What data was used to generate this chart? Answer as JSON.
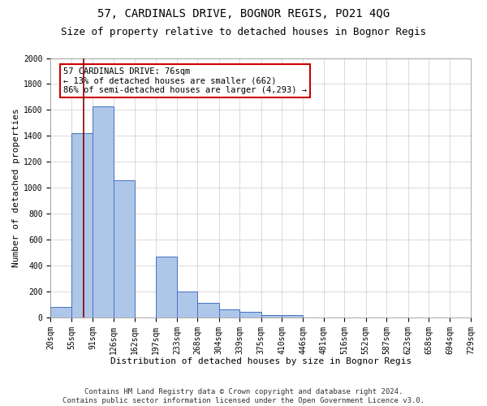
{
  "title1": "57, CARDINALS DRIVE, BOGNOR REGIS, PO21 4QG",
  "title2": "Size of property relative to detached houses in Bognor Regis",
  "xlabel": "Distribution of detached houses by size in Bognor Regis",
  "ylabel": "Number of detached properties",
  "footnote": "Contains HM Land Registry data © Crown copyright and database right 2024.\nContains public sector information licensed under the Open Government Licence v3.0.",
  "bin_edges": [
    20,
    55,
    91,
    126,
    162,
    197,
    233,
    268,
    304,
    339,
    375,
    410,
    446,
    481,
    516,
    552,
    587,
    623,
    658,
    694,
    729
  ],
  "bar_heights": [
    80,
    1420,
    1630,
    1060,
    0,
    470,
    200,
    110,
    60,
    40,
    20,
    20,
    0,
    0,
    0,
    0,
    0,
    0,
    0,
    0
  ],
  "bar_color": "#aec6e8",
  "bar_edge_color": "#4472c4",
  "vline_x": 76,
  "vline_color": "#8b0000",
  "annotation_text": "57 CARDINALS DRIVE: 76sqm\n← 13% of detached houses are smaller (662)\n86% of semi-detached houses are larger (4,293) →",
  "annotation_box_color": "#ffffff",
  "annotation_box_edge_color": "#cc0000",
  "ylim": [
    0,
    2000
  ],
  "yticks": [
    0,
    200,
    400,
    600,
    800,
    1000,
    1200,
    1400,
    1600,
    1800,
    2000
  ],
  "grid_color": "#cccccc",
  "background_color": "#ffffff",
  "title1_fontsize": 10,
  "title2_fontsize": 9,
  "xlabel_fontsize": 8,
  "ylabel_fontsize": 8,
  "tick_fontsize": 7,
  "annotation_fontsize": 7.5,
  "footnote_fontsize": 6.5
}
